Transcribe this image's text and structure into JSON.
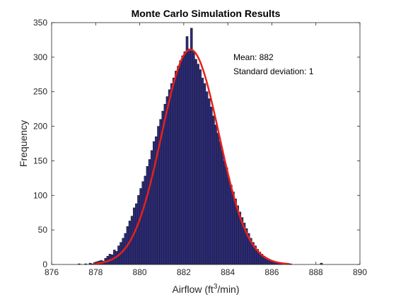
{
  "chart_data": {
    "type": "bar",
    "subtype": "histogram",
    "title": "Monte Carlo Simulation Results",
    "xlabel_prefix": "Airflow (ft",
    "xlabel_sup": "3",
    "xlabel_suffix": "/min)",
    "ylabel": "Frequency",
    "xlim": [
      876,
      890
    ],
    "ylim": [
      0,
      350
    ],
    "xticks": [
      876,
      878,
      880,
      882,
      884,
      886,
      888,
      890
    ],
    "yticks": [
      0,
      50,
      100,
      150,
      200,
      250,
      300,
      350
    ],
    "grid": false,
    "bin_width": 0.1,
    "bar_color": "#2b2a7a",
    "bar_edge_color": "#1a1a1a",
    "fit_color": "#e8201a",
    "annotations": {
      "mean": "Mean: 882",
      "std": "Standard deviation: 1"
    },
    "fit_curve": {
      "distribution": "normal",
      "mean": 882.3,
      "std": 1.3,
      "peak": 311,
      "x_range": [
        877.9,
        886.8
      ]
    },
    "bins": [
      {
        "x": 877.25,
        "y": 1
      },
      {
        "x": 877.55,
        "y": 1
      },
      {
        "x": 877.75,
        "y": 2
      },
      {
        "x": 877.85,
        "y": 1
      },
      {
        "x": 877.95,
        "y": 3
      },
      {
        "x": 878.05,
        "y": 4
      },
      {
        "x": 878.15,
        "y": 5
      },
      {
        "x": 878.25,
        "y": 6
      },
      {
        "x": 878.35,
        "y": 5
      },
      {
        "x": 878.45,
        "y": 9
      },
      {
        "x": 878.55,
        "y": 12
      },
      {
        "x": 878.65,
        "y": 15
      },
      {
        "x": 878.75,
        "y": 14
      },
      {
        "x": 878.85,
        "y": 21
      },
      {
        "x": 878.95,
        "y": 19
      },
      {
        "x": 879.05,
        "y": 27
      },
      {
        "x": 879.15,
        "y": 32
      },
      {
        "x": 879.25,
        "y": 38
      },
      {
        "x": 879.35,
        "y": 45
      },
      {
        "x": 879.45,
        "y": 55
      },
      {
        "x": 879.55,
        "y": 63
      },
      {
        "x": 879.65,
        "y": 70
      },
      {
        "x": 879.75,
        "y": 82
      },
      {
        "x": 879.85,
        "y": 88
      },
      {
        "x": 879.95,
        "y": 100
      },
      {
        "x": 880.05,
        "y": 110
      },
      {
        "x": 880.15,
        "y": 120
      },
      {
        "x": 880.25,
        "y": 128
      },
      {
        "x": 880.35,
        "y": 142
      },
      {
        "x": 880.45,
        "y": 152
      },
      {
        "x": 880.55,
        "y": 165
      },
      {
        "x": 880.65,
        "y": 178
      },
      {
        "x": 880.75,
        "y": 185
      },
      {
        "x": 880.85,
        "y": 200
      },
      {
        "x": 880.95,
        "y": 210
      },
      {
        "x": 881.05,
        "y": 222
      },
      {
        "x": 881.15,
        "y": 232
      },
      {
        "x": 881.25,
        "y": 243
      },
      {
        "x": 881.35,
        "y": 253
      },
      {
        "x": 881.45,
        "y": 262
      },
      {
        "x": 881.55,
        "y": 270
      },
      {
        "x": 881.65,
        "y": 280
      },
      {
        "x": 881.75,
        "y": 287
      },
      {
        "x": 881.85,
        "y": 295
      },
      {
        "x": 881.95,
        "y": 302
      },
      {
        "x": 882.05,
        "y": 308
      },
      {
        "x": 882.15,
        "y": 330
      },
      {
        "x": 882.25,
        "y": 312
      },
      {
        "x": 882.35,
        "y": 342
      },
      {
        "x": 882.45,
        "y": 308
      },
      {
        "x": 882.55,
        "y": 297
      },
      {
        "x": 882.65,
        "y": 290
      },
      {
        "x": 882.75,
        "y": 282
      },
      {
        "x": 882.85,
        "y": 270
      },
      {
        "x": 882.95,
        "y": 262
      },
      {
        "x": 883.05,
        "y": 250
      },
      {
        "x": 883.15,
        "y": 240
      },
      {
        "x": 883.25,
        "y": 228
      },
      {
        "x": 883.35,
        "y": 215
      },
      {
        "x": 883.45,
        "y": 202
      },
      {
        "x": 883.55,
        "y": 190
      },
      {
        "x": 883.65,
        "y": 178
      },
      {
        "x": 883.75,
        "y": 165
      },
      {
        "x": 883.85,
        "y": 150
      },
      {
        "x": 883.95,
        "y": 140
      },
      {
        "x": 884.05,
        "y": 125
      },
      {
        "x": 884.15,
        "y": 115
      },
      {
        "x": 884.25,
        "y": 105
      },
      {
        "x": 884.35,
        "y": 95
      },
      {
        "x": 884.45,
        "y": 85
      },
      {
        "x": 884.55,
        "y": 76
      },
      {
        "x": 884.65,
        "y": 68
      },
      {
        "x": 884.75,
        "y": 60
      },
      {
        "x": 884.85,
        "y": 52
      },
      {
        "x": 884.95,
        "y": 45
      },
      {
        "x": 885.05,
        "y": 38
      },
      {
        "x": 885.15,
        "y": 32
      },
      {
        "x": 885.25,
        "y": 27
      },
      {
        "x": 885.35,
        "y": 22
      },
      {
        "x": 885.45,
        "y": 18
      },
      {
        "x": 885.55,
        "y": 15
      },
      {
        "x": 885.65,
        "y": 12
      },
      {
        "x": 885.75,
        "y": 10
      },
      {
        "x": 885.85,
        "y": 8
      },
      {
        "x": 885.95,
        "y": 6
      },
      {
        "x": 886.05,
        "y": 5
      },
      {
        "x": 886.15,
        "y": 4
      },
      {
        "x": 886.25,
        "y": 3
      },
      {
        "x": 886.35,
        "y": 2
      },
      {
        "x": 886.45,
        "y": 2
      },
      {
        "x": 886.65,
        "y": 1
      },
      {
        "x": 886.85,
        "y": 1
      },
      {
        "x": 888.25,
        "y": 2
      }
    ]
  }
}
